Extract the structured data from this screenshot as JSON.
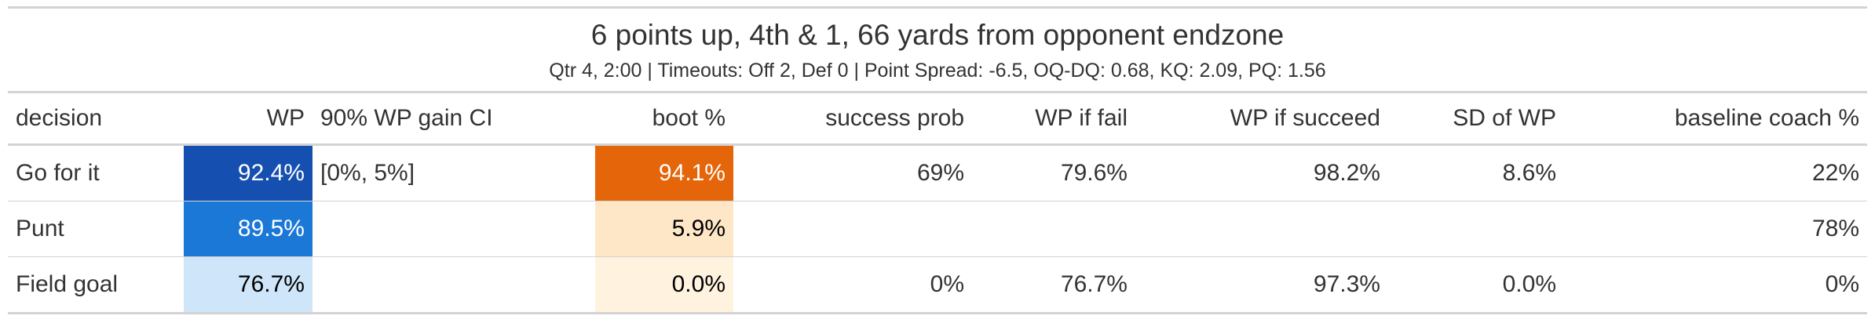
{
  "title": "6 points up, 4th & 1, 66 yards from opponent endzone",
  "subtitle": "Qtr 4, 2:00 | Timeouts: Off 2, Def 0 | Point Spread: -6.5, OQ-DQ: 0.68, KQ: 2.09, PQ: 1.56",
  "columns": {
    "decision": "decision",
    "wp": "WP",
    "ci": "90% WP gain CI",
    "boot": "boot %",
    "success_prob": "success prob",
    "wp_fail": "WP if fail",
    "wp_succeed": "WP if succeed",
    "sd": "SD of WP",
    "baseline": "baseline coach %"
  },
  "rows": [
    {
      "decision": "Go for it",
      "wp": "92.4%",
      "ci": "[0%, 5%]",
      "boot": "94.1%",
      "success_prob": "69%",
      "wp_fail": "79.6%",
      "wp_succeed": "98.2%",
      "sd": "8.6%",
      "baseline": "22%"
    },
    {
      "decision": "Punt",
      "wp": "89.5%",
      "ci": "",
      "boot": "5.9%",
      "success_prob": "",
      "wp_fail": "",
      "wp_succeed": "",
      "sd": "",
      "baseline": "78%"
    },
    {
      "decision": "Field goal",
      "wp": "76.7%",
      "ci": "",
      "boot": "0.0%",
      "success_prob": "0%",
      "wp_fail": "76.7%",
      "wp_succeed": "97.3%",
      "sd": "0.0%",
      "baseline": "0%"
    }
  ],
  "cell_colors": {
    "wp": [
      "#1550b0",
      "#1c78d6",
      "#cfe5f9"
    ],
    "boot": [
      "#e5650a",
      "#fde7c6",
      "#fff2df"
    ]
  }
}
